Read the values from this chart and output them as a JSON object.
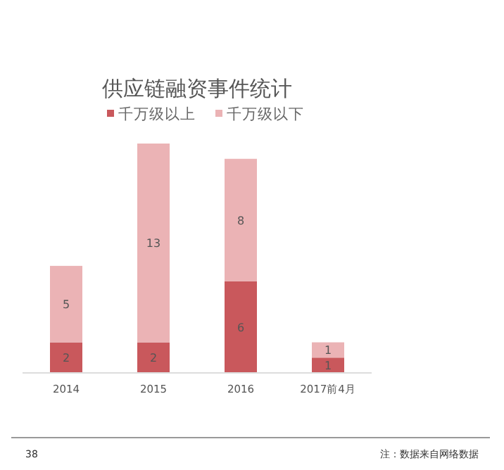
{
  "chart_data": {
    "type": "bar",
    "title": "供应链融资事件统计",
    "categories": [
      "2014",
      "2015",
      "2016",
      "2017前4月"
    ],
    "stacked": true,
    "data_labels": true,
    "legend": "top",
    "series": [
      {
        "name": "千万级以上",
        "color": "#c9585c",
        "values": [
          2,
          2,
          6,
          1
        ]
      },
      {
        "name": "千万级以下",
        "color": "#ebb3b5",
        "values": [
          5,
          13,
          8,
          1
        ]
      }
    ],
    "annotations": [
      "38",
      "注：数据来自网络数据"
    ]
  }
}
